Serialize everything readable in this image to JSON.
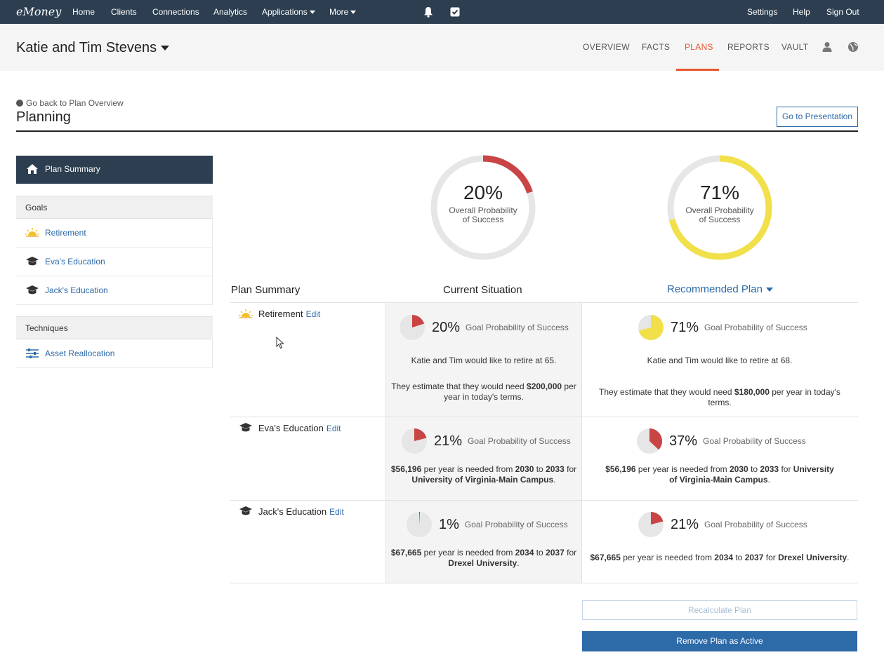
{
  "topnav": {
    "logo": "eMoney",
    "items": [
      "Home",
      "Clients",
      "Connections",
      "Analytics",
      "Applications",
      "More"
    ],
    "right_items": [
      "Settings",
      "Help",
      "Sign Out"
    ],
    "icons": [
      "bell-icon",
      "check-square-icon"
    ]
  },
  "header": {
    "client_name": "Katie and Tim Stevens",
    "tabs": [
      "OVERVIEW",
      "FACTS",
      "PLANS",
      "REPORTS",
      "VAULT"
    ],
    "active_tab": "PLANS",
    "icons": [
      "user-icon",
      "globe-icon"
    ],
    "accent_color": "#e8572c"
  },
  "page": {
    "back_link": "Go back to Plan Overview",
    "title": "Planning",
    "presentation_button": "Go to Presentation"
  },
  "sidebar": {
    "summary_label": "Plan Summary",
    "goals_header": "Goals",
    "goals": [
      "Retirement",
      "Eva's Education",
      "Jack's Education"
    ],
    "techniques_header": "Techniques",
    "techniques": [
      "Asset Reallocation"
    ]
  },
  "gauges": {
    "current": {
      "percent_label": "20%",
      "value": 0.2,
      "subtitle": "Overall Probability of Success",
      "color": "#c94444"
    },
    "recommended": {
      "percent_label": "71%",
      "value": 0.71,
      "subtitle": "Overall Probability of Success",
      "color": "#f2e04a"
    }
  },
  "table": {
    "col_summary": "Plan Summary",
    "col_current": "Current Situation",
    "col_recommended": "Recommended Plan",
    "edit_label": "Edit",
    "goal_prob_label": "Goal Probability of Success",
    "rows": [
      {
        "label": "Retirement",
        "current": {
          "pct_label": "20%",
          "value": 0.2,
          "line1": "Katie and Tim would like to retire at",
          "age": "65",
          "line2a": "They estimate that they would need",
          "amount": "$200,000",
          "line2b": "per year in today's terms."
        },
        "recommended": {
          "pct_label": "71%",
          "value": 0.71,
          "line1": "Katie and Tim would like to retire at",
          "age": "68",
          "line2a": "They estimate that they would need",
          "amount": "$180,000",
          "line2b": "per year in today's terms."
        }
      },
      {
        "label": "Eva's Education",
        "current": {
          "pct_label": "21%",
          "value": 0.21,
          "amount": "$56,196",
          "mid1": "per year is needed from",
          "from": "2030",
          "to_word": "to",
          "to": "2033",
          "for_word": "for",
          "school": "University of Virginia-Main Campus"
        },
        "recommended": {
          "pct_label": "37%",
          "value": 0.37,
          "amount": "$56,196",
          "mid1": "per year is needed from",
          "from": "2030",
          "to_word": "to",
          "to": "2033",
          "for_word": "for",
          "school": "University of Virginia-Main Campus"
        }
      },
      {
        "label": "Jack's Education",
        "current": {
          "pct_label": "1%",
          "value": 0.01,
          "amount": "$67,665",
          "mid1": "per year is needed from",
          "from": "2034",
          "to_word": "to",
          "to": "2037",
          "for_word": "for",
          "school": "Drexel University"
        },
        "recommended": {
          "pct_label": "21%",
          "value": 0.21,
          "amount": "$67,665",
          "mid1": "per year is needed from",
          "from": "2034",
          "to_word": "to",
          "to": "2037",
          "for_word": "for",
          "school": "Drexel University"
        }
      }
    ]
  },
  "actions": {
    "recalculate": "Recalculate Plan",
    "remove_active": "Remove Plan as Active"
  }
}
